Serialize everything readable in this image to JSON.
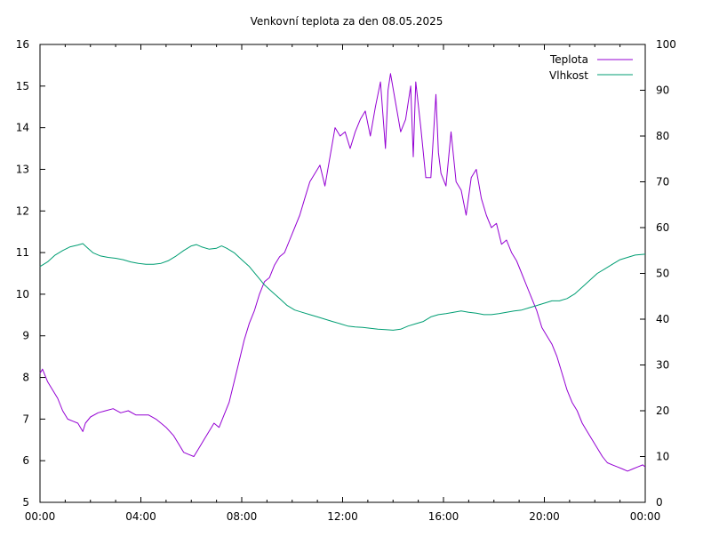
{
  "chart_data": {
    "type": "line",
    "title": "Venkovní teplota za den 08.05.2025",
    "xlabel": "",
    "ylabel": "",
    "y2label": "",
    "x_ticks": [
      "00:00",
      "04:00",
      "08:00",
      "12:00",
      "16:00",
      "20:00",
      "00:00"
    ],
    "x_range_hours": [
      0,
      24
    ],
    "ylim": [
      5,
      16
    ],
    "y_ticks": [
      5,
      6,
      7,
      8,
      9,
      10,
      11,
      12,
      13,
      14,
      15,
      16
    ],
    "y2lim": [
      0,
      100
    ],
    "y2_ticks": [
      0,
      10,
      20,
      30,
      40,
      50,
      60,
      70,
      80,
      90,
      100
    ],
    "grid": false,
    "legend_position": "top-right",
    "series": [
      {
        "name": "Teplota",
        "axis": "left",
        "color": "#9400d3",
        "x": [
          0,
          0.1,
          0.3,
          0.5,
          0.7,
          0.9,
          1.1,
          1.3,
          1.5,
          1.7,
          1.8,
          2.0,
          2.3,
          2.6,
          2.9,
          3.2,
          3.5,
          3.8,
          4.0,
          4.3,
          4.6,
          4.8,
          5.0,
          5.3,
          5.5,
          5.7,
          5.9,
          6.1,
          6.3,
          6.5,
          6.7,
          6.9,
          7.1,
          7.3,
          7.5,
          7.7,
          7.9,
          8.1,
          8.3,
          8.5,
          8.7,
          8.9,
          9.1,
          9.3,
          9.5,
          9.7,
          9.9,
          10.1,
          10.3,
          10.5,
          10.7,
          10.9,
          11.1,
          11.3,
          11.5,
          11.7,
          11.9,
          12.1,
          12.3,
          12.5,
          12.7,
          12.9,
          13.1,
          13.3,
          13.5,
          13.7,
          13.8,
          13.9,
          14.1,
          14.3,
          14.5,
          14.7,
          14.8,
          14.9,
          15.1,
          15.3,
          15.5,
          15.7,
          15.8,
          15.9,
          16.1,
          16.3,
          16.5,
          16.7,
          16.9,
          17.1,
          17.3,
          17.5,
          17.7,
          17.9,
          18.1,
          18.3,
          18.5,
          18.7,
          18.9,
          19.1,
          19.3,
          19.5,
          19.7,
          19.9,
          20.1,
          20.3,
          20.5,
          20.7,
          20.9,
          21.1,
          21.3,
          21.5,
          21.7,
          21.9,
          22.1,
          22.3,
          22.5,
          22.7,
          22.9,
          23.1,
          23.3,
          23.5,
          23.7,
          23.9,
          24.0
        ],
        "y": [
          8.1,
          8.2,
          7.9,
          7.7,
          7.5,
          7.2,
          7.0,
          6.95,
          6.9,
          6.7,
          6.9,
          7.05,
          7.15,
          7.2,
          7.25,
          7.15,
          7.2,
          7.1,
          7.1,
          7.1,
          7.0,
          6.9,
          6.8,
          6.6,
          6.4,
          6.2,
          6.15,
          6.1,
          6.3,
          6.5,
          6.7,
          6.9,
          6.8,
          7.1,
          7.4,
          7.9,
          8.4,
          8.9,
          9.3,
          9.6,
          10.0,
          10.3,
          10.4,
          10.7,
          10.9,
          11.0,
          11.3,
          11.6,
          11.9,
          12.3,
          12.7,
          12.9,
          13.1,
          12.6,
          13.3,
          14.0,
          13.8,
          13.9,
          13.5,
          13.9,
          14.2,
          14.4,
          13.8,
          14.5,
          15.1,
          13.5,
          14.9,
          15.3,
          14.6,
          13.9,
          14.2,
          15.0,
          13.3,
          15.1,
          14.0,
          12.8,
          12.8,
          14.8,
          13.4,
          12.9,
          12.6,
          13.9,
          12.7,
          12.5,
          11.9,
          12.8,
          13.0,
          12.3,
          11.9,
          11.6,
          11.7,
          11.2,
          11.3,
          11.0,
          10.8,
          10.5,
          10.2,
          9.9,
          9.6,
          9.2,
          9.0,
          8.8,
          8.5,
          8.1,
          7.7,
          7.4,
          7.2,
          6.9,
          6.7,
          6.5,
          6.3,
          6.1,
          5.95,
          5.9,
          5.85,
          5.8,
          5.75,
          5.8,
          5.85,
          5.9,
          5.85
        ]
      },
      {
        "name": "Vlhkost",
        "axis": "right",
        "color": "#009e73",
        "x": [
          0,
          0.3,
          0.6,
          0.9,
          1.2,
          1.5,
          1.7,
          1.9,
          2.1,
          2.4,
          2.7,
          3.0,
          3.3,
          3.6,
          3.9,
          4.2,
          4.5,
          4.8,
          5.1,
          5.4,
          5.7,
          6.0,
          6.2,
          6.4,
          6.7,
          7.0,
          7.2,
          7.4,
          7.7,
          8.0,
          8.3,
          8.6,
          8.9,
          9.2,
          9.5,
          9.8,
          10.1,
          10.4,
          10.7,
          11.0,
          11.3,
          11.6,
          11.9,
          12.2,
          12.5,
          12.8,
          13.1,
          13.4,
          13.7,
          14.0,
          14.3,
          14.6,
          14.9,
          15.2,
          15.5,
          15.8,
          16.1,
          16.4,
          16.7,
          17.0,
          17.3,
          17.6,
          17.9,
          18.2,
          18.5,
          18.8,
          19.1,
          19.4,
          19.7,
          20.0,
          20.3,
          20.6,
          20.9,
          21.2,
          21.5,
          21.8,
          22.1,
          22.4,
          22.7,
          23.0,
          23.3,
          23.6,
          24.0
        ],
        "y": [
          51.5,
          52.5,
          54,
          55,
          55.8,
          56.2,
          56.5,
          55.5,
          54.5,
          53.8,
          53.5,
          53.3,
          53.0,
          52.5,
          52.2,
          52.0,
          52.0,
          52.2,
          52.8,
          53.8,
          55.0,
          56.0,
          56.3,
          55.8,
          55.3,
          55.5,
          56.0,
          55.5,
          54.5,
          53.0,
          51.5,
          49.5,
          47.5,
          46.0,
          44.5,
          43.0,
          42.0,
          41.5,
          41.0,
          40.5,
          40.0,
          39.5,
          39.0,
          38.5,
          38.3,
          38.2,
          38.0,
          37.8,
          37.7,
          37.6,
          37.8,
          38.5,
          39.0,
          39.5,
          40.5,
          41.0,
          41.2,
          41.5,
          41.8,
          41.5,
          41.3,
          41.0,
          41.0,
          41.2,
          41.5,
          41.8,
          42.0,
          42.5,
          43.0,
          43.5,
          44.0,
          44.0,
          44.5,
          45.5,
          47.0,
          48.5,
          50.0,
          51.0,
          52.0,
          53.0,
          53.5,
          54.0,
          54.2
        ]
      }
    ]
  }
}
